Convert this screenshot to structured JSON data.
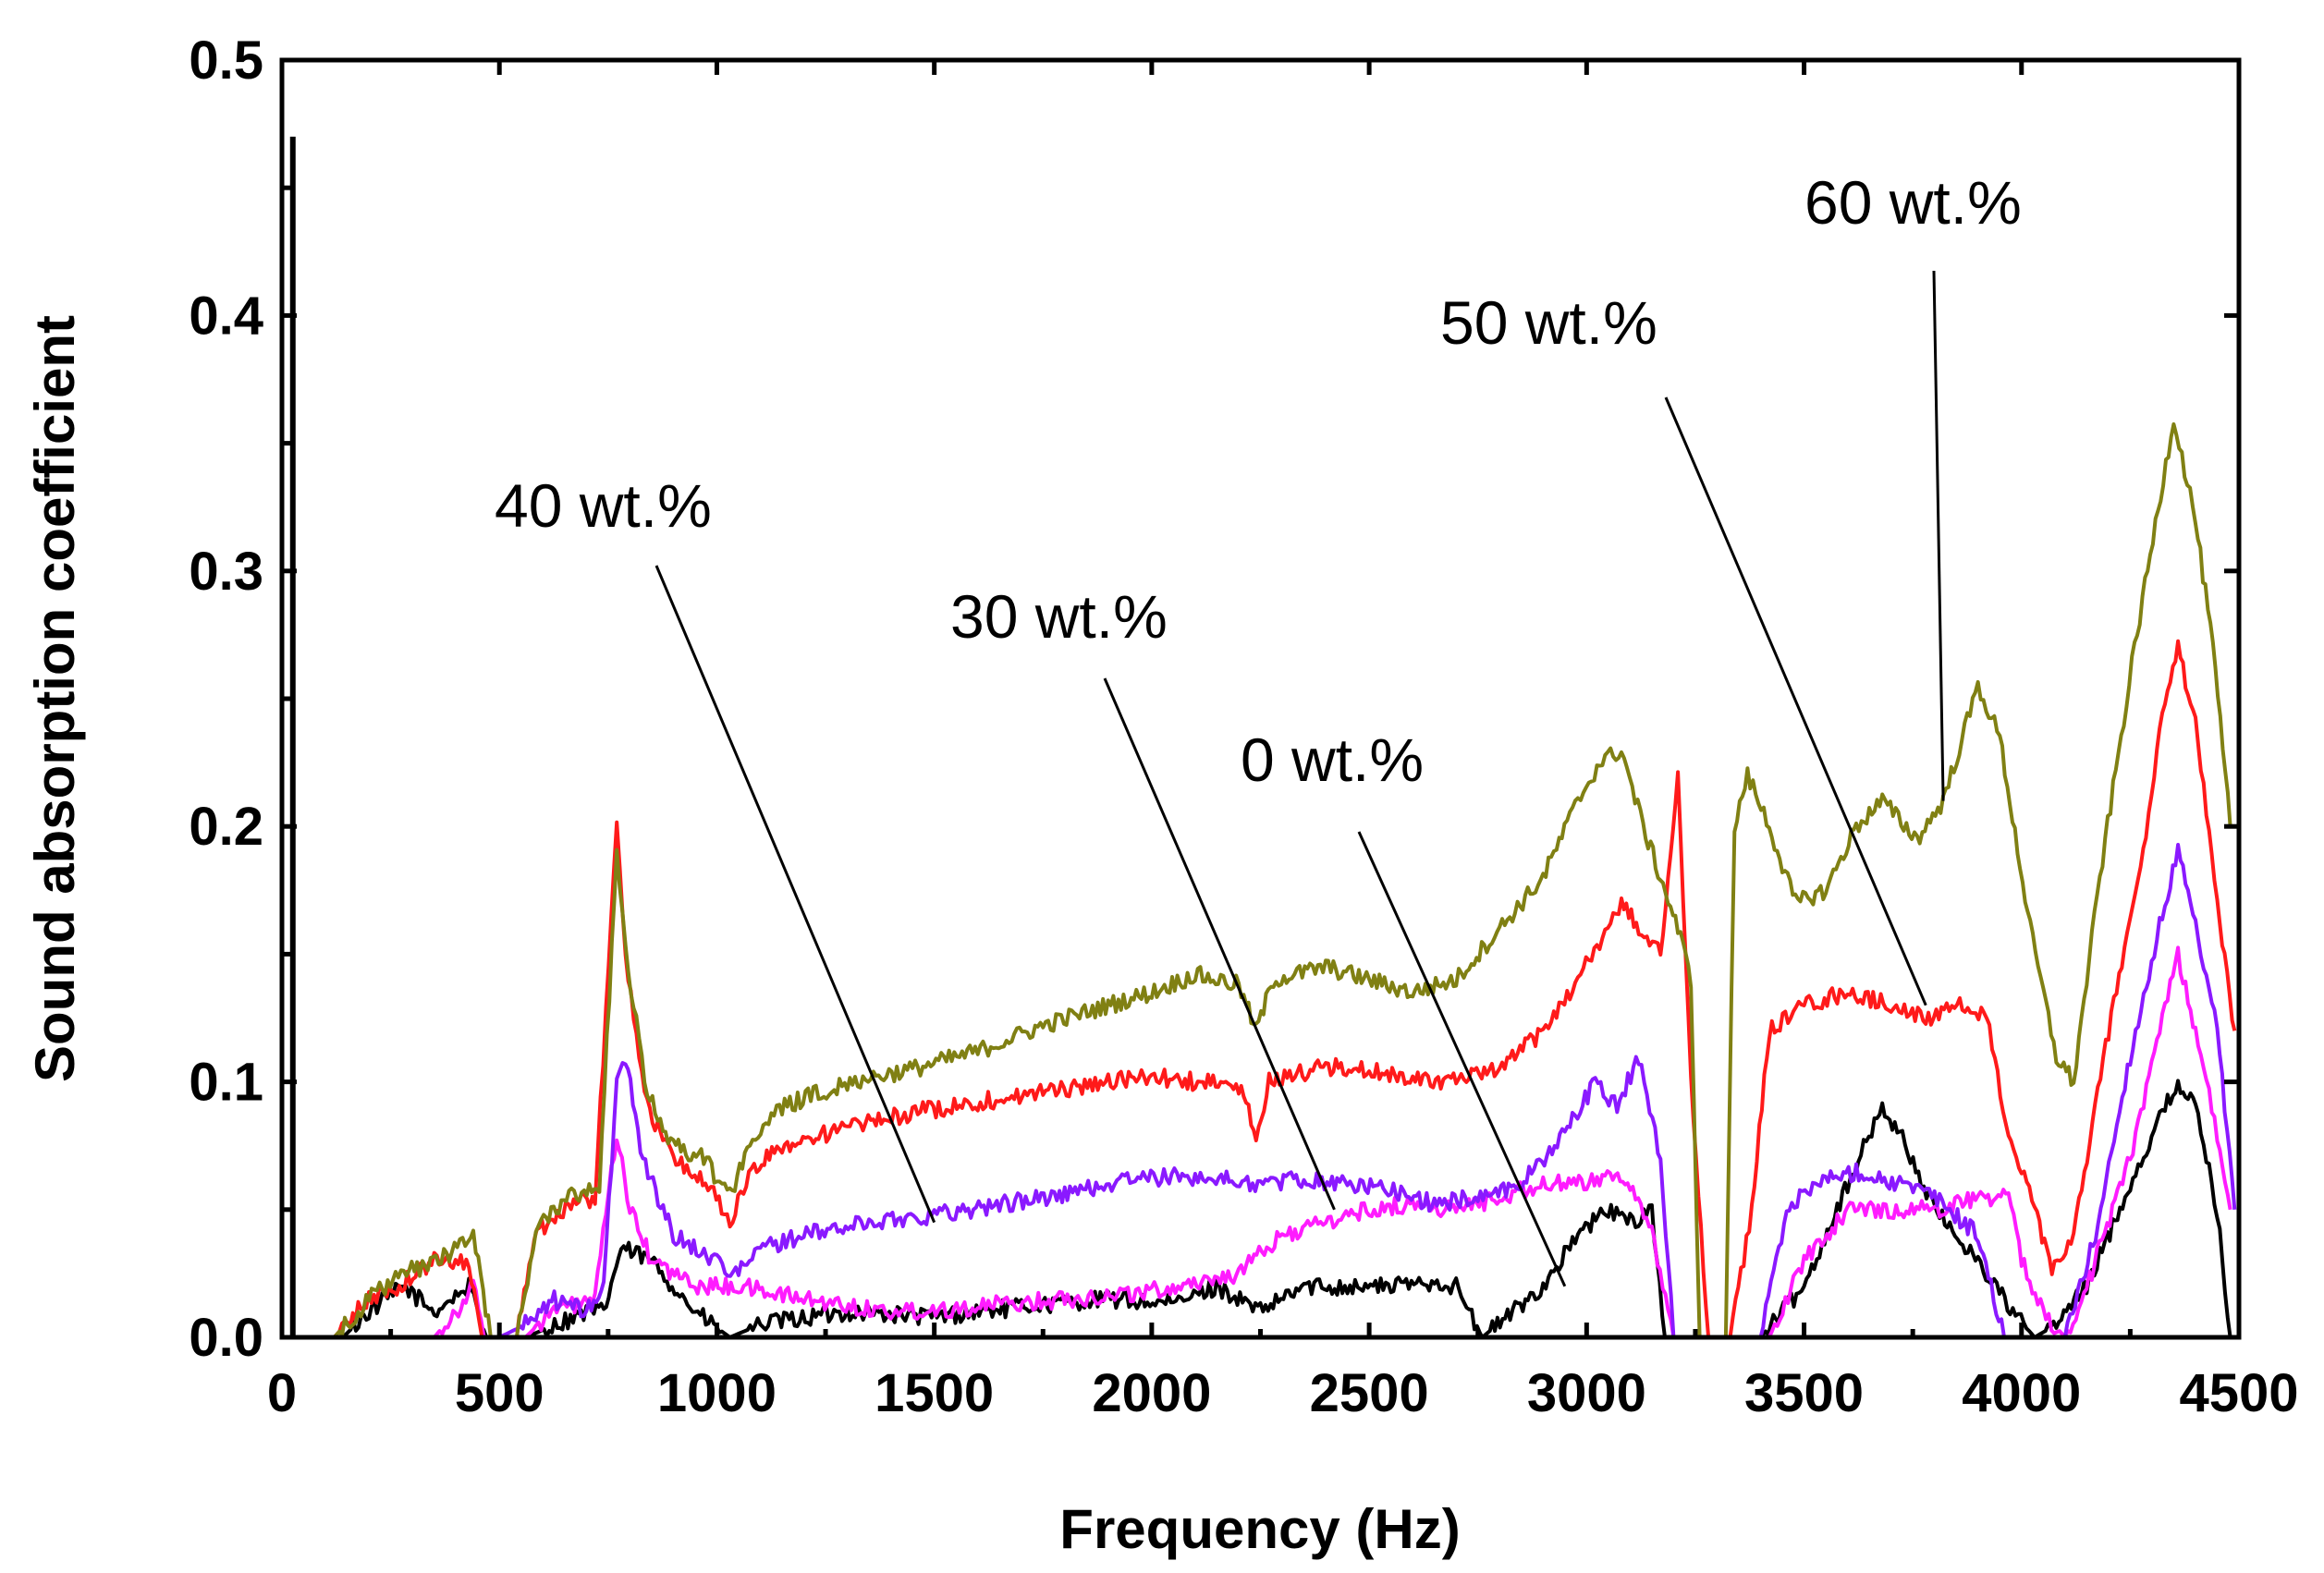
{
  "chart_data": {
    "type": "line",
    "title": "",
    "xlabel": "Frequency (Hz)",
    "ylabel": "Sound absorption coefficient",
    "xlim": [
      0,
      4500
    ],
    "ylim": [
      0.0,
      0.5
    ],
    "grid": false,
    "x_ticks": [
      0,
      500,
      1000,
      1500,
      2000,
      2500,
      3000,
      3500,
      4000,
      4500
    ],
    "x_tick_labels": [
      "0",
      "500",
      "1000",
      "1500",
      "2000",
      "2500",
      "3000",
      "3500",
      "4000",
      "4500"
    ],
    "y_ticks": [
      0.0,
      0.1,
      0.2,
      0.3,
      0.4,
      0.5
    ],
    "y_tick_labels": [
      "0.0",
      "0.1",
      "0.2",
      "0.3",
      "0.4",
      "0.5"
    ],
    "spike": {
      "x": 25,
      "y": 0.47,
      "color": "#000000"
    },
    "series": [
      {
        "name": "0 wt.%",
        "color": "#000000",
        "points": [
          [
            140,
            0.0
          ],
          [
            200,
            0.01
          ],
          [
            280,
            0.02
          ],
          [
            350,
            0.01
          ],
          [
            430,
            0.02
          ],
          [
            470,
            0.0
          ],
          [
            560,
            0.0
          ],
          [
            700,
            0.01
          ],
          [
            740,
            0.01
          ],
          [
            780,
            0.035
          ],
          [
            850,
            0.03
          ],
          [
            950,
            0.01
          ],
          [
            1030,
            0.0
          ],
          [
            1100,
            0.005
          ],
          [
            1300,
            0.01
          ],
          [
            1500,
            0.008
          ],
          [
            1700,
            0.012
          ],
          [
            1900,
            0.015
          ],
          [
            2050,
            0.013
          ],
          [
            2150,
            0.02
          ],
          [
            2250,
            0.01
          ],
          [
            2350,
            0.02
          ],
          [
            2450,
            0.02
          ],
          [
            2550,
            0.02
          ],
          [
            2650,
            0.022
          ],
          [
            2700,
            0.02
          ],
          [
            2760,
            0.0
          ],
          [
            2830,
            0.01
          ],
          [
            2900,
            0.02
          ],
          [
            2980,
            0.04
          ],
          [
            3050,
            0.05
          ],
          [
            3100,
            0.045
          ],
          [
            3150,
            0.05
          ],
          [
            3180,
            0.0
          ],
          [
            3400,
            0.0
          ],
          [
            3500,
            0.02
          ],
          [
            3600,
            0.06
          ],
          [
            3680,
            0.09
          ],
          [
            3720,
            0.08
          ],
          [
            3800,
            0.05
          ],
          [
            3900,
            0.03
          ],
          [
            3980,
            0.01
          ],
          [
            4030,
            0.0
          ],
          [
            4080,
            0.005
          ],
          [
            4150,
            0.02
          ],
          [
            4250,
            0.06
          ],
          [
            4330,
            0.09
          ],
          [
            4360,
            0.1
          ],
          [
            4400,
            0.09
          ],
          [
            4450,
            0.05
          ],
          [
            4480,
            0.0
          ]
        ]
      },
      {
        "name": "30 wt.%",
        "color": "#ff1cff",
        "points": [
          [
            350,
            0.0
          ],
          [
            400,
            0.01
          ],
          [
            440,
            0.02
          ],
          [
            470,
            0.0
          ],
          [
            560,
            0.0
          ],
          [
            620,
            0.01
          ],
          [
            720,
            0.015
          ],
          [
            770,
            0.08
          ],
          [
            800,
            0.05
          ],
          [
            850,
            0.03
          ],
          [
            950,
            0.02
          ],
          [
            1050,
            0.02
          ],
          [
            1200,
            0.015
          ],
          [
            1400,
            0.01
          ],
          [
            1600,
            0.012
          ],
          [
            1800,
            0.015
          ],
          [
            2000,
            0.018
          ],
          [
            2200,
            0.025
          ],
          [
            2300,
            0.04
          ],
          [
            2400,
            0.045
          ],
          [
            2500,
            0.05
          ],
          [
            2600,
            0.052
          ],
          [
            2700,
            0.05
          ],
          [
            2800,
            0.055
          ],
          [
            2900,
            0.06
          ],
          [
            3000,
            0.06
          ],
          [
            3060,
            0.065
          ],
          [
            3100,
            0.06
          ],
          [
            3150,
            0.04
          ],
          [
            3200,
            0.0
          ],
          [
            3420,
            0.0
          ],
          [
            3500,
            0.03
          ],
          [
            3600,
            0.05
          ],
          [
            3700,
            0.05
          ],
          [
            3800,
            0.05
          ],
          [
            3900,
            0.055
          ],
          [
            3970,
            0.055
          ],
          [
            4000,
            0.03
          ],
          [
            4050,
            0.01
          ],
          [
            4100,
            0.0
          ],
          [
            4150,
            0.02
          ],
          [
            4250,
            0.07
          ],
          [
            4330,
            0.13
          ],
          [
            4360,
            0.15
          ],
          [
            4400,
            0.12
          ],
          [
            4450,
            0.08
          ],
          [
            4480,
            0.05
          ]
        ]
      },
      {
        "name": "40 wt.%",
        "color": "#8a19ff",
        "points": [
          [
            500,
            0.0
          ],
          [
            560,
            0.005
          ],
          [
            620,
            0.015
          ],
          [
            700,
            0.01
          ],
          [
            740,
            0.02
          ],
          [
            770,
            0.1
          ],
          [
            790,
            0.11
          ],
          [
            830,
            0.07
          ],
          [
            900,
            0.04
          ],
          [
            1000,
            0.03
          ],
          [
            1050,
            0.025
          ],
          [
            1100,
            0.035
          ],
          [
            1200,
            0.04
          ],
          [
            1350,
            0.045
          ],
          [
            1500,
            0.048
          ],
          [
            1650,
            0.052
          ],
          [
            1800,
            0.056
          ],
          [
            1950,
            0.062
          ],
          [
            2100,
            0.063
          ],
          [
            2250,
            0.06
          ],
          [
            2350,
            0.062
          ],
          [
            2450,
            0.06
          ],
          [
            2550,
            0.058
          ],
          [
            2650,
            0.052
          ],
          [
            2750,
            0.055
          ],
          [
            2850,
            0.06
          ],
          [
            2950,
            0.08
          ],
          [
            3020,
            0.1
          ],
          [
            3070,
            0.09
          ],
          [
            3120,
            0.11
          ],
          [
            3170,
            0.07
          ],
          [
            3200,
            0.0
          ],
          [
            3400,
            0.0
          ],
          [
            3460,
            0.05
          ],
          [
            3520,
            0.06
          ],
          [
            3620,
            0.065
          ],
          [
            3720,
            0.06
          ],
          [
            3800,
            0.055
          ],
          [
            3900,
            0.04
          ],
          [
            3960,
            0.0
          ],
          [
            4100,
            0.0
          ],
          [
            4170,
            0.04
          ],
          [
            4250,
            0.11
          ],
          [
            4330,
            0.17
          ],
          [
            4360,
            0.19
          ],
          [
            4400,
            0.16
          ],
          [
            4450,
            0.12
          ],
          [
            4490,
            0.05
          ]
        ]
      },
      {
        "name": "50 wt.%",
        "color": "#ff1a1a",
        "points": [
          [
            120,
            0.0
          ],
          [
            200,
            0.015
          ],
          [
            270,
            0.02
          ],
          [
            350,
            0.03
          ],
          [
            430,
            0.03
          ],
          [
            460,
            0.0
          ],
          [
            540,
            0.0
          ],
          [
            580,
            0.04
          ],
          [
            640,
            0.05
          ],
          [
            720,
            0.055
          ],
          [
            770,
            0.2
          ],
          [
            790,
            0.15
          ],
          [
            840,
            0.09
          ],
          [
            900,
            0.07
          ],
          [
            980,
            0.06
          ],
          [
            1030,
            0.045
          ],
          [
            1080,
            0.065
          ],
          [
            1150,
            0.075
          ],
          [
            1300,
            0.082
          ],
          [
            1450,
            0.088
          ],
          [
            1600,
            0.092
          ],
          [
            1750,
            0.096
          ],
          [
            1900,
            0.1
          ],
          [
            2000,
            0.102
          ],
          [
            2100,
            0.1
          ],
          [
            2200,
            0.098
          ],
          [
            2240,
            0.08
          ],
          [
            2270,
            0.1
          ],
          [
            2400,
            0.106
          ],
          [
            2500,
            0.104
          ],
          [
            2600,
            0.102
          ],
          [
            2700,
            0.1
          ],
          [
            2800,
            0.105
          ],
          [
            2900,
            0.12
          ],
          [
            2980,
            0.14
          ],
          [
            3030,
            0.155
          ],
          [
            3080,
            0.17
          ],
          [
            3120,
            0.16
          ],
          [
            3170,
            0.15
          ],
          [
            3210,
            0.22
          ],
          [
            3240,
            0.1
          ],
          [
            3280,
            0.0
          ],
          [
            3330,
            0.0
          ],
          [
            3380,
            0.05
          ],
          [
            3420,
            0.12
          ],
          [
            3500,
            0.13
          ],
          [
            3600,
            0.135
          ],
          [
            3700,
            0.13
          ],
          [
            3780,
            0.125
          ],
          [
            3870,
            0.13
          ],
          [
            3920,
            0.125
          ],
          [
            3970,
            0.08
          ],
          [
            4030,
            0.05
          ],
          [
            4070,
            0.025
          ],
          [
            4120,
            0.04
          ],
          [
            4200,
            0.12
          ],
          [
            4280,
            0.19
          ],
          [
            4330,
            0.25
          ],
          [
            4360,
            0.27
          ],
          [
            4400,
            0.24
          ],
          [
            4450,
            0.17
          ],
          [
            4490,
            0.12
          ]
        ]
      },
      {
        "name": "60 wt.%",
        "color": "#808013",
        "points": [
          [
            120,
            0.0
          ],
          [
            200,
            0.015
          ],
          [
            280,
            0.025
          ],
          [
            360,
            0.03
          ],
          [
            440,
            0.04
          ],
          [
            480,
            0.0
          ],
          [
            540,
            0.0
          ],
          [
            590,
            0.045
          ],
          [
            660,
            0.055
          ],
          [
            730,
            0.06
          ],
          [
            770,
            0.19
          ],
          [
            790,
            0.15
          ],
          [
            840,
            0.095
          ],
          [
            900,
            0.075
          ],
          [
            970,
            0.07
          ],
          [
            1030,
            0.055
          ],
          [
            1070,
            0.075
          ],
          [
            1150,
            0.09
          ],
          [
            1300,
            0.1
          ],
          [
            1450,
            0.105
          ],
          [
            1600,
            0.112
          ],
          [
            1750,
            0.122
          ],
          [
            1900,
            0.13
          ],
          [
            2000,
            0.135
          ],
          [
            2100,
            0.142
          ],
          [
            2200,
            0.138
          ],
          [
            2240,
            0.12
          ],
          [
            2280,
            0.14
          ],
          [
            2400,
            0.145
          ],
          [
            2500,
            0.14
          ],
          [
            2600,
            0.135
          ],
          [
            2700,
            0.14
          ],
          [
            2800,
            0.16
          ],
          [
            2900,
            0.18
          ],
          [
            2980,
            0.21
          ],
          [
            3030,
            0.225
          ],
          [
            3080,
            0.23
          ],
          [
            3130,
            0.2
          ],
          [
            3170,
            0.18
          ],
          [
            3210,
            0.16
          ],
          [
            3240,
            0.14
          ],
          [
            3260,
            0.0
          ],
          [
            3320,
            0.0
          ],
          [
            3340,
            0.2
          ],
          [
            3370,
            0.22
          ],
          [
            3420,
            0.2
          ],
          [
            3480,
            0.17
          ],
          [
            3550,
            0.175
          ],
          [
            3620,
            0.2
          ],
          [
            3680,
            0.21
          ],
          [
            3760,
            0.195
          ],
          [
            3820,
            0.21
          ],
          [
            3900,
            0.255
          ],
          [
            3950,
            0.235
          ],
          [
            4020,
            0.16
          ],
          [
            4080,
            0.11
          ],
          [
            4120,
            0.1
          ],
          [
            4180,
            0.18
          ],
          [
            4260,
            0.27
          ],
          [
            4320,
            0.33
          ],
          [
            4350,
            0.36
          ],
          [
            4400,
            0.32
          ],
          [
            4440,
            0.27
          ],
          [
            4480,
            0.2
          ]
        ]
      }
    ],
    "annotations": [
      {
        "label": "40 wt.%",
        "target": [
          1500,
          0.045
        ]
      },
      {
        "label": "30 wt.%",
        "target": [
          2420,
          0.05
        ]
      },
      {
        "label": "0 wt.%",
        "target": [
          2950,
          0.02
        ]
      },
      {
        "label": "50 wt.%",
        "target": [
          3780,
          0.13
        ]
      },
      {
        "label": "60 wt.%",
        "target": [
          3820,
          0.21
        ]
      }
    ]
  }
}
